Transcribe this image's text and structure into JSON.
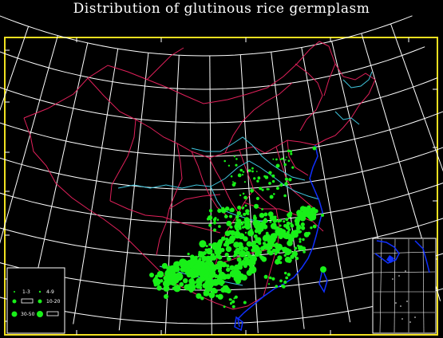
{
  "title": "Distribution of glutinous rice germplasm",
  "colors": {
    "background": "#000000",
    "frame": "#f0e020",
    "graticule": "#ffffff",
    "province_border": "#e0205a",
    "river": "#40c8e0",
    "coast": "#1030ff",
    "points": "#18f018"
  },
  "legend": {
    "items": [
      {
        "label": "1-3",
        "symbol": "small-dot"
      },
      {
        "label": "4-9",
        "symbol": "small-dot"
      },
      {
        "label": "",
        "symbol": "medium-dot"
      },
      {
        "label": "10-20",
        "symbol": "medium-dot"
      },
      {
        "label": "30-50",
        "symbol": "large-dot"
      },
      {
        "label": "",
        "symbol": "large-dot"
      }
    ]
  },
  "inset": {
    "name": "south-china-sea-inset"
  }
}
